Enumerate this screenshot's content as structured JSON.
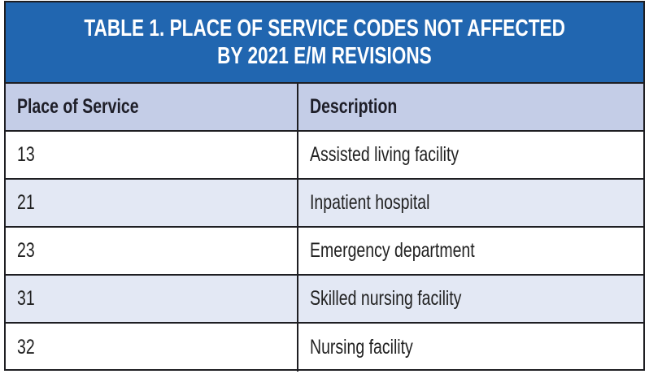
{
  "title": {
    "line1": "TABLE 1. PLACE OF SERVICE CODES NOT AFFECTED",
    "line2": "BY 2021 E/M REVISIONS"
  },
  "columns": [
    "Place of Service",
    "Description"
  ],
  "rows": [
    {
      "code": "13",
      "description": "Assisted living facility"
    },
    {
      "code": "21",
      "description": "Inpatient hospital"
    },
    {
      "code": "23",
      "description": "Emergency department"
    },
    {
      "code": "31",
      "description": "Skilled nursing facility"
    },
    {
      "code": "32",
      "description": "Nursing facility"
    }
  ],
  "colors": {
    "title_bg": "#2166b0",
    "header_bg": "#c4cde7",
    "alt_row_bg": "#e3e8f4",
    "border": "#1e1e22"
  }
}
